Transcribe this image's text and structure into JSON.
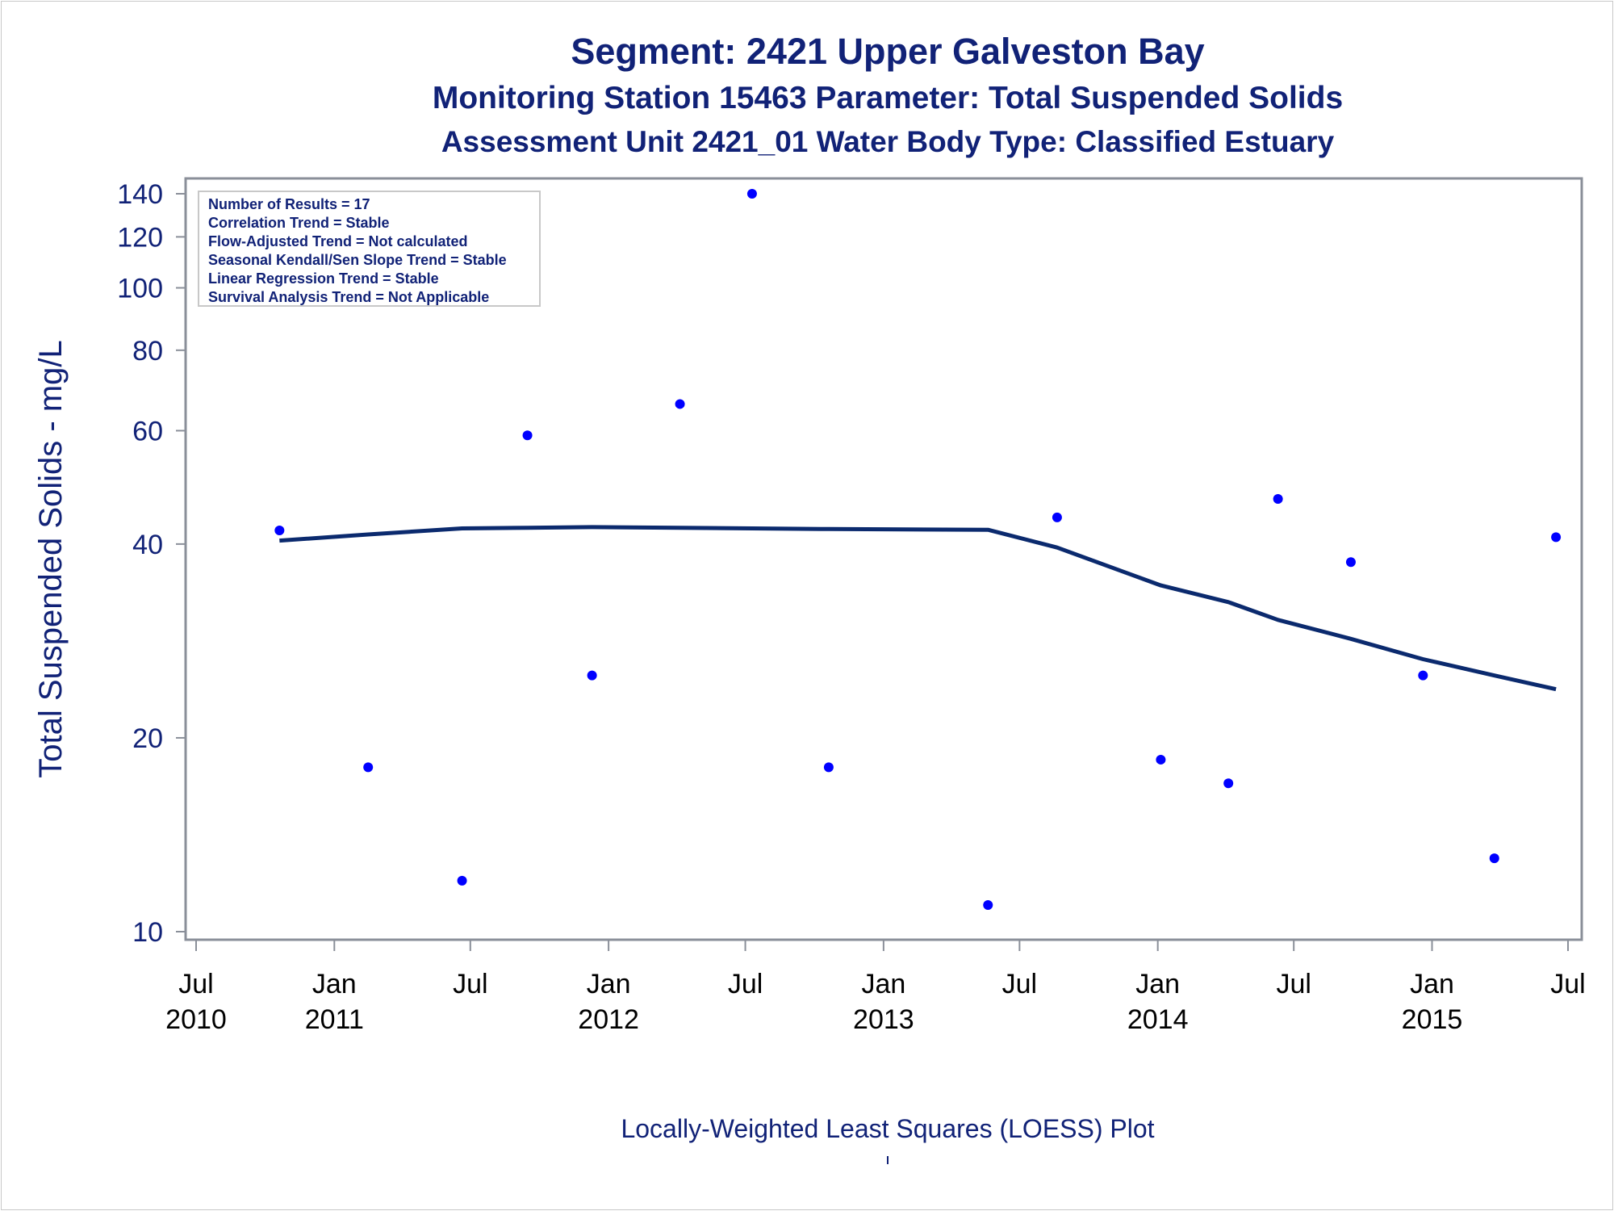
{
  "colors": {
    "title": "#112277",
    "axis_label": "#112277",
    "tick_label": "#112277",
    "x_tick_label": "#000000",
    "frame": "#8a8f99",
    "point": "#0000ff",
    "loess_line": "#0b2a6e",
    "legend_border": "#c8c8c8"
  },
  "titles": {
    "line1": "Segment: 2421  Upper Galveston Bay",
    "line2": "Monitoring Station 15463 Parameter: Total Suspended Solids",
    "line3": "Assessment Unit 2421_01    Water Body Type: Classified Estuary"
  },
  "footnote": "Locally-Weighted Least Squares (LOESS) Plot",
  "chart_data": {
    "type": "scatter",
    "ylabel": "Total Suspended Solids - mg/L",
    "xlabel": "",
    "y_scale": "log",
    "ylim": [
      9.8,
      145
    ],
    "xlim": [
      "2010-07-01",
      "2015-07-01"
    ],
    "y_ticks": [
      10,
      20,
      40,
      60,
      80,
      100,
      120,
      140
    ],
    "x_ticks": [
      {
        "date": "2010-07-01",
        "line1": "Jul",
        "line2": "2010"
      },
      {
        "date": "2011-01-01",
        "line1": "Jan",
        "line2": "2011"
      },
      {
        "date": "2011-07-01",
        "line1": "Jul",
        "line2": ""
      },
      {
        "date": "2012-01-01",
        "line1": "Jan",
        "line2": "2012"
      },
      {
        "date": "2012-07-01",
        "line1": "Jul",
        "line2": ""
      },
      {
        "date": "2013-01-01",
        "line1": "Jan",
        "line2": "2013"
      },
      {
        "date": "2013-07-01",
        "line1": "Jul",
        "line2": ""
      },
      {
        "date": "2014-01-01",
        "line1": "Jan",
        "line2": "2014"
      },
      {
        "date": "2014-07-01",
        "line1": "Jul",
        "line2": ""
      },
      {
        "date": "2015-01-01",
        "line1": "Jan",
        "line2": "2015"
      },
      {
        "date": "2015-07-01",
        "line1": "Jul",
        "line2": ""
      }
    ],
    "legend_placement": "top-left",
    "legend_lines": [
      "Number of Results = 17",
      "Correlation Trend = Stable",
      "Flow-Adjusted Trend = Not calculated",
      "Seasonal Kendall/Sen Slope Trend = Stable",
      "Linear Regression Trend = Stable",
      "Survival Analysis Trend = Not Applicable"
    ],
    "series": [
      {
        "kind": "points",
        "points": [
          {
            "x": "2010-10-20",
            "y": 42
          },
          {
            "x": "2011-02-15",
            "y": 18
          },
          {
            "x": "2011-06-20",
            "y": 12
          },
          {
            "x": "2011-09-15",
            "y": 59
          },
          {
            "x": "2011-12-10",
            "y": 25
          },
          {
            "x": "2012-04-05",
            "y": 66
          },
          {
            "x": "2012-07-10",
            "y": 140
          },
          {
            "x": "2012-10-20",
            "y": 18
          },
          {
            "x": "2013-05-20",
            "y": 11
          },
          {
            "x": "2013-08-20",
            "y": 44
          },
          {
            "x": "2014-01-05",
            "y": 18.5
          },
          {
            "x": "2014-04-05",
            "y": 17
          },
          {
            "x": "2014-06-10",
            "y": 47
          },
          {
            "x": "2014-09-15",
            "y": 37.5
          },
          {
            "x": "2014-12-20",
            "y": 25
          },
          {
            "x": "2015-03-25",
            "y": 13
          },
          {
            "x": "2015-06-15",
            "y": 41
          }
        ]
      },
      {
        "kind": "loess",
        "points": [
          {
            "x": "2010-10-20",
            "y": 40.5
          },
          {
            "x": "2011-02-15",
            "y": 41.4
          },
          {
            "x": "2011-06-20",
            "y": 42.3
          },
          {
            "x": "2011-09-15",
            "y": 42.4
          },
          {
            "x": "2011-12-10",
            "y": 42.5
          },
          {
            "x": "2012-04-05",
            "y": 42.4
          },
          {
            "x": "2012-07-10",
            "y": 42.3
          },
          {
            "x": "2012-10-20",
            "y": 42.2
          },
          {
            "x": "2013-05-20",
            "y": 42.1
          },
          {
            "x": "2013-08-20",
            "y": 39.5
          },
          {
            "x": "2014-01-05",
            "y": 34.5
          },
          {
            "x": "2014-04-05",
            "y": 32.5
          },
          {
            "x": "2014-06-10",
            "y": 30.5
          },
          {
            "x": "2014-09-15",
            "y": 28.5
          },
          {
            "x": "2014-12-20",
            "y": 26.5
          },
          {
            "x": "2015-03-25",
            "y": 25.0
          },
          {
            "x": "2015-06-15",
            "y": 23.8
          }
        ]
      }
    ]
  }
}
